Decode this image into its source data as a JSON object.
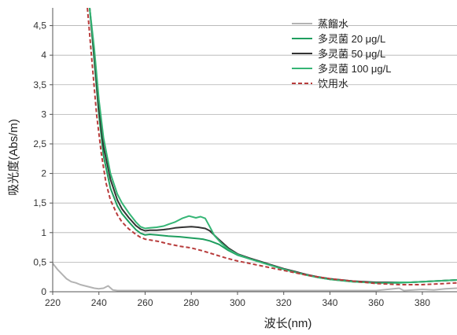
{
  "chart_data": {
    "type": "line",
    "xlabel": "波长(nm)",
    "ylabel": "吸光度(Abs/m)",
    "xlim": [
      220,
      395
    ],
    "ylim": [
      0,
      4.8
    ],
    "x_ticks": [
      "220",
      "240",
      "260",
      "280",
      "300",
      "320",
      "340",
      "360",
      "380"
    ],
    "y_ticks": [
      "0",
      "0,5",
      "1",
      "1,5",
      "2",
      "2,5",
      "3",
      "3,5",
      "4",
      "4,5"
    ],
    "grid": "horizontal",
    "legend_position": "top-right",
    "series": [
      {
        "name": "蒸餾水",
        "color": "#b3b3b3",
        "dash": "solid",
        "points": [
          [
            220,
            0.48
          ],
          [
            222,
            0.38
          ],
          [
            224,
            0.3
          ],
          [
            226,
            0.22
          ],
          [
            228,
            0.17
          ],
          [
            230,
            0.15
          ],
          [
            232,
            0.12
          ],
          [
            234,
            0.1
          ],
          [
            236,
            0.08
          ],
          [
            238,
            0.06
          ],
          [
            240,
            0.05
          ],
          [
            242,
            0.06
          ],
          [
            244,
            0.1
          ],
          [
            246,
            0.03
          ],
          [
            248,
            0.02
          ],
          [
            250,
            0.02
          ],
          [
            255,
            0.02
          ],
          [
            260,
            0.02
          ],
          [
            270,
            0.02
          ],
          [
            280,
            0.02
          ],
          [
            290,
            0.02
          ],
          [
            300,
            0.02
          ],
          [
            320,
            0.02
          ],
          [
            340,
            0.02
          ],
          [
            360,
            0.02
          ],
          [
            370,
            0.06
          ],
          [
            372,
            0.02
          ],
          [
            380,
            0.04
          ],
          [
            385,
            0.03
          ],
          [
            390,
            0.05
          ],
          [
            395,
            0.06
          ]
        ]
      },
      {
        "name": "多灵菌 20 μg/L",
        "color": "#1f9e5f",
        "dash": "solid",
        "points": [
          [
            236,
            4.8
          ],
          [
            238,
            3.9
          ],
          [
            240,
            3.0
          ],
          [
            242,
            2.3
          ],
          [
            245,
            1.75
          ],
          [
            248,
            1.45
          ],
          [
            250,
            1.32
          ],
          [
            253,
            1.18
          ],
          [
            256,
            1.05
          ],
          [
            258,
            0.99
          ],
          [
            260,
            0.96
          ],
          [
            262,
            0.97
          ],
          [
            265,
            0.96
          ],
          [
            268,
            0.95
          ],
          [
            270,
            0.94
          ],
          [
            275,
            0.93
          ],
          [
            280,
            0.91
          ],
          [
            285,
            0.89
          ],
          [
            288,
            0.86
          ],
          [
            292,
            0.8
          ],
          [
            296,
            0.7
          ],
          [
            300,
            0.62
          ],
          [
            305,
            0.56
          ],
          [
            310,
            0.5
          ],
          [
            315,
            0.44
          ],
          [
            320,
            0.38
          ],
          [
            325,
            0.33
          ],
          [
            330,
            0.28
          ],
          [
            335,
            0.24
          ],
          [
            340,
            0.21
          ],
          [
            345,
            0.19
          ],
          [
            350,
            0.17
          ],
          [
            355,
            0.16
          ],
          [
            360,
            0.15
          ],
          [
            365,
            0.15
          ],
          [
            370,
            0.15
          ],
          [
            375,
            0.16
          ],
          [
            380,
            0.17
          ],
          [
            385,
            0.18
          ],
          [
            390,
            0.19
          ],
          [
            395,
            0.2
          ]
        ]
      },
      {
        "name": "多灵菌 50 μg/L",
        "color": "#333333",
        "dash": "solid",
        "points": [
          [
            236,
            4.8
          ],
          [
            238,
            4.0
          ],
          [
            240,
            3.1
          ],
          [
            242,
            2.45
          ],
          [
            245,
            1.9
          ],
          [
            248,
            1.55
          ],
          [
            250,
            1.4
          ],
          [
            253,
            1.25
          ],
          [
            256,
            1.12
          ],
          [
            258,
            1.06
          ],
          [
            260,
            1.03
          ],
          [
            262,
            1.04
          ],
          [
            265,
            1.04
          ],
          [
            268,
            1.05
          ],
          [
            270,
            1.06
          ],
          [
            273,
            1.08
          ],
          [
            276,
            1.09
          ],
          [
            280,
            1.1
          ],
          [
            283,
            1.09
          ],
          [
            286,
            1.07
          ],
          [
            288,
            1.03
          ],
          [
            292,
            0.88
          ],
          [
            296,
            0.74
          ],
          [
            300,
            0.64
          ],
          [
            305,
            0.57
          ],
          [
            310,
            0.51
          ],
          [
            315,
            0.45
          ],
          [
            320,
            0.39
          ],
          [
            325,
            0.34
          ],
          [
            330,
            0.29
          ],
          [
            335,
            0.25
          ],
          [
            340,
            0.22
          ],
          [
            345,
            0.2
          ],
          [
            350,
            0.18
          ],
          [
            355,
            0.17
          ],
          [
            360,
            0.16
          ],
          [
            365,
            0.16
          ],
          [
            370,
            0.16
          ],
          [
            375,
            0.16
          ],
          [
            380,
            0.17
          ],
          [
            385,
            0.18
          ],
          [
            390,
            0.19
          ],
          [
            395,
            0.2
          ]
        ]
      },
      {
        "name": "多灵菌 100 μg/L",
        "color": "#35b575",
        "dash": "solid",
        "points": [
          [
            236,
            4.8
          ],
          [
            238,
            4.1
          ],
          [
            240,
            3.25
          ],
          [
            242,
            2.6
          ],
          [
            245,
            2.0
          ],
          [
            248,
            1.65
          ],
          [
            250,
            1.5
          ],
          [
            253,
            1.33
          ],
          [
            256,
            1.18
          ],
          [
            258,
            1.1
          ],
          [
            260,
            1.07
          ],
          [
            262,
            1.08
          ],
          [
            265,
            1.09
          ],
          [
            268,
            1.11
          ],
          [
            270,
            1.14
          ],
          [
            273,
            1.18
          ],
          [
            276,
            1.24
          ],
          [
            279,
            1.28
          ],
          [
            282,
            1.25
          ],
          [
            284,
            1.27
          ],
          [
            286,
            1.24
          ],
          [
            288,
            1.1
          ],
          [
            290,
            0.95
          ],
          [
            293,
            0.82
          ],
          [
            296,
            0.72
          ],
          [
            300,
            0.63
          ],
          [
            305,
            0.56
          ],
          [
            310,
            0.5
          ],
          [
            315,
            0.44
          ],
          [
            320,
            0.38
          ],
          [
            325,
            0.33
          ],
          [
            330,
            0.28
          ],
          [
            335,
            0.24
          ],
          [
            340,
            0.21
          ],
          [
            345,
            0.19
          ],
          [
            350,
            0.17
          ],
          [
            355,
            0.16
          ],
          [
            360,
            0.15
          ],
          [
            365,
            0.15
          ],
          [
            370,
            0.16
          ],
          [
            375,
            0.16
          ],
          [
            380,
            0.17
          ],
          [
            385,
            0.18
          ],
          [
            390,
            0.19
          ],
          [
            395,
            0.2
          ]
        ]
      },
      {
        "name": "饮用水",
        "color": "#b83c3c",
        "dash": "dashed",
        "points": [
          [
            235,
            4.8
          ],
          [
            237,
            3.9
          ],
          [
            239,
            3.0
          ],
          [
            241,
            2.35
          ],
          [
            243,
            1.85
          ],
          [
            245,
            1.55
          ],
          [
            248,
            1.3
          ],
          [
            250,
            1.18
          ],
          [
            253,
            1.06
          ],
          [
            256,
            0.97
          ],
          [
            258,
            0.92
          ],
          [
            260,
            0.89
          ],
          [
            263,
            0.87
          ],
          [
            266,
            0.85
          ],
          [
            270,
            0.81
          ],
          [
            275,
            0.77
          ],
          [
            280,
            0.74
          ],
          [
            285,
            0.69
          ],
          [
            290,
            0.63
          ],
          [
            295,
            0.57
          ],
          [
            300,
            0.52
          ],
          [
            305,
            0.48
          ],
          [
            310,
            0.44
          ],
          [
            315,
            0.4
          ],
          [
            320,
            0.36
          ],
          [
            325,
            0.32
          ],
          [
            330,
            0.28
          ],
          [
            335,
            0.25
          ],
          [
            340,
            0.22
          ],
          [
            345,
            0.2
          ],
          [
            350,
            0.18
          ],
          [
            355,
            0.16
          ],
          [
            360,
            0.14
          ],
          [
            365,
            0.13
          ],
          [
            370,
            0.12
          ],
          [
            375,
            0.12
          ],
          [
            380,
            0.12
          ],
          [
            385,
            0.13
          ],
          [
            390,
            0.14
          ],
          [
            395,
            0.15
          ]
        ]
      }
    ]
  }
}
